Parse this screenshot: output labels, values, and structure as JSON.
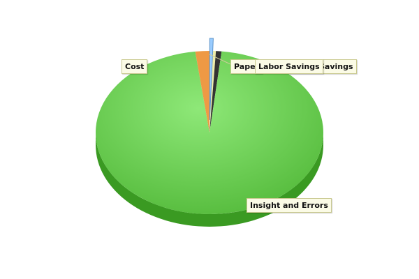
{
  "chart_data": {
    "type": "pie",
    "style": "3d",
    "slices": [
      {
        "label": "Insight and Errors",
        "value": 96.3,
        "color": "#66cc44"
      },
      {
        "label": "Cost",
        "value": 2.0,
        "color": "#ee9944"
      },
      {
        "label": "Paper",
        "value": 0.5,
        "color": "#99ccff"
      },
      {
        "label": "Labor Savings",
        "value": 0.4,
        "color": "#eeeeaa"
      },
      {
        "label": "Savings",
        "value": 0.8,
        "color": "#333333"
      }
    ],
    "legend": "none"
  }
}
